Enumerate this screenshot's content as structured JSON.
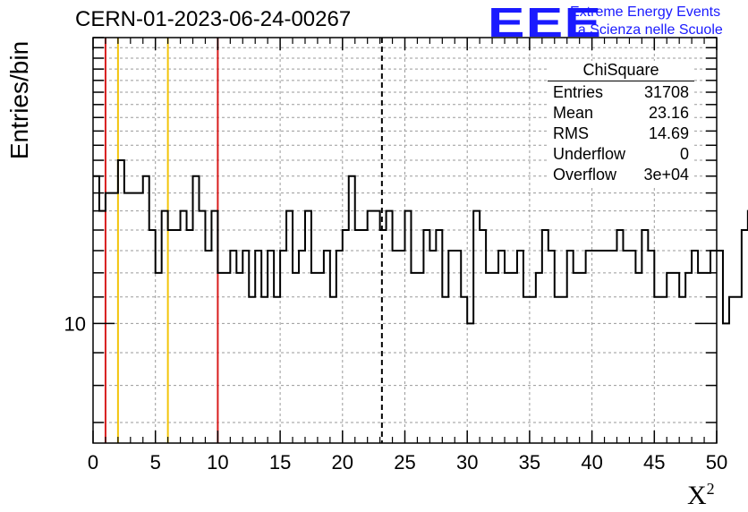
{
  "chart_data": {
    "type": "histogram",
    "title": "CERN-01-2023-06-24-00267",
    "xlabel": "X",
    "xlabel_sup": "2",
    "ylabel": "Entries/bin",
    "xlim": [
      0,
      50
    ],
    "ylim": [
      6.5,
      28
    ],
    "yscale": "log",
    "grid": true,
    "bin_width": 0.5,
    "x_ticks": [
      0,
      5,
      10,
      15,
      20,
      25,
      30,
      35,
      40,
      45,
      50
    ],
    "y_tick_labels": [
      {
        "value": 10,
        "label": "10"
      }
    ],
    "counts": [
      17,
      15,
      16,
      16,
      18,
      16,
      16,
      16,
      17,
      14,
      12,
      15,
      14,
      14,
      15,
      14,
      17,
      15,
      13,
      15,
      12,
      12,
      13,
      12,
      13,
      11,
      13,
      11,
      13,
      11,
      13,
      15,
      12,
      13,
      15,
      12,
      12,
      13,
      11,
      13,
      14,
      17,
      14,
      14,
      15,
      15,
      14,
      15,
      13,
      13,
      15,
      12,
      12,
      14,
      13,
      14,
      11,
      13,
      13,
      11,
      10,
      15,
      14,
      12,
      12,
      13,
      12,
      12,
      13,
      11,
      11,
      12,
      14,
      13,
      11,
      11,
      13,
      12,
      12,
      13,
      13,
      13,
      13,
      13,
      14,
      13,
      13,
      12,
      14,
      13,
      11,
      11,
      12,
      12,
      11,
      12,
      13,
      12,
      12,
      13,
      13,
      10,
      11,
      11,
      14,
      15,
      12,
      11,
      11,
      10,
      12,
      11,
      11,
      11,
      11,
      9,
      8,
      13,
      8,
      16
    ],
    "vertical_lines": [
      {
        "x": 1,
        "color": "#d81e1e",
        "style": "solid"
      },
      {
        "x": 2,
        "color": "#f2c40b",
        "style": "solid"
      },
      {
        "x": 6,
        "color": "#f2c40b",
        "style": "solid"
      },
      {
        "x": 10,
        "color": "#d81e1e",
        "style": "solid"
      },
      {
        "x": 23.16,
        "color": "#000000",
        "style": "dashed"
      }
    ],
    "stats": {
      "title": "ChiSquare",
      "rows": [
        {
          "label": "Entries",
          "value": "31708"
        },
        {
          "label": "Mean",
          "value": "23.16"
        },
        {
          "label": "RMS",
          "value": "14.69"
        },
        {
          "label": "Underflow",
          "value": "0"
        },
        {
          "label": "Overflow",
          "value": "3e+04"
        }
      ]
    }
  },
  "logo": {
    "mark": "EEE",
    "line1": "Extreme Energy Events",
    "line2": "La Scienza nelle Scuole",
    "color": "#1a1aff"
  }
}
